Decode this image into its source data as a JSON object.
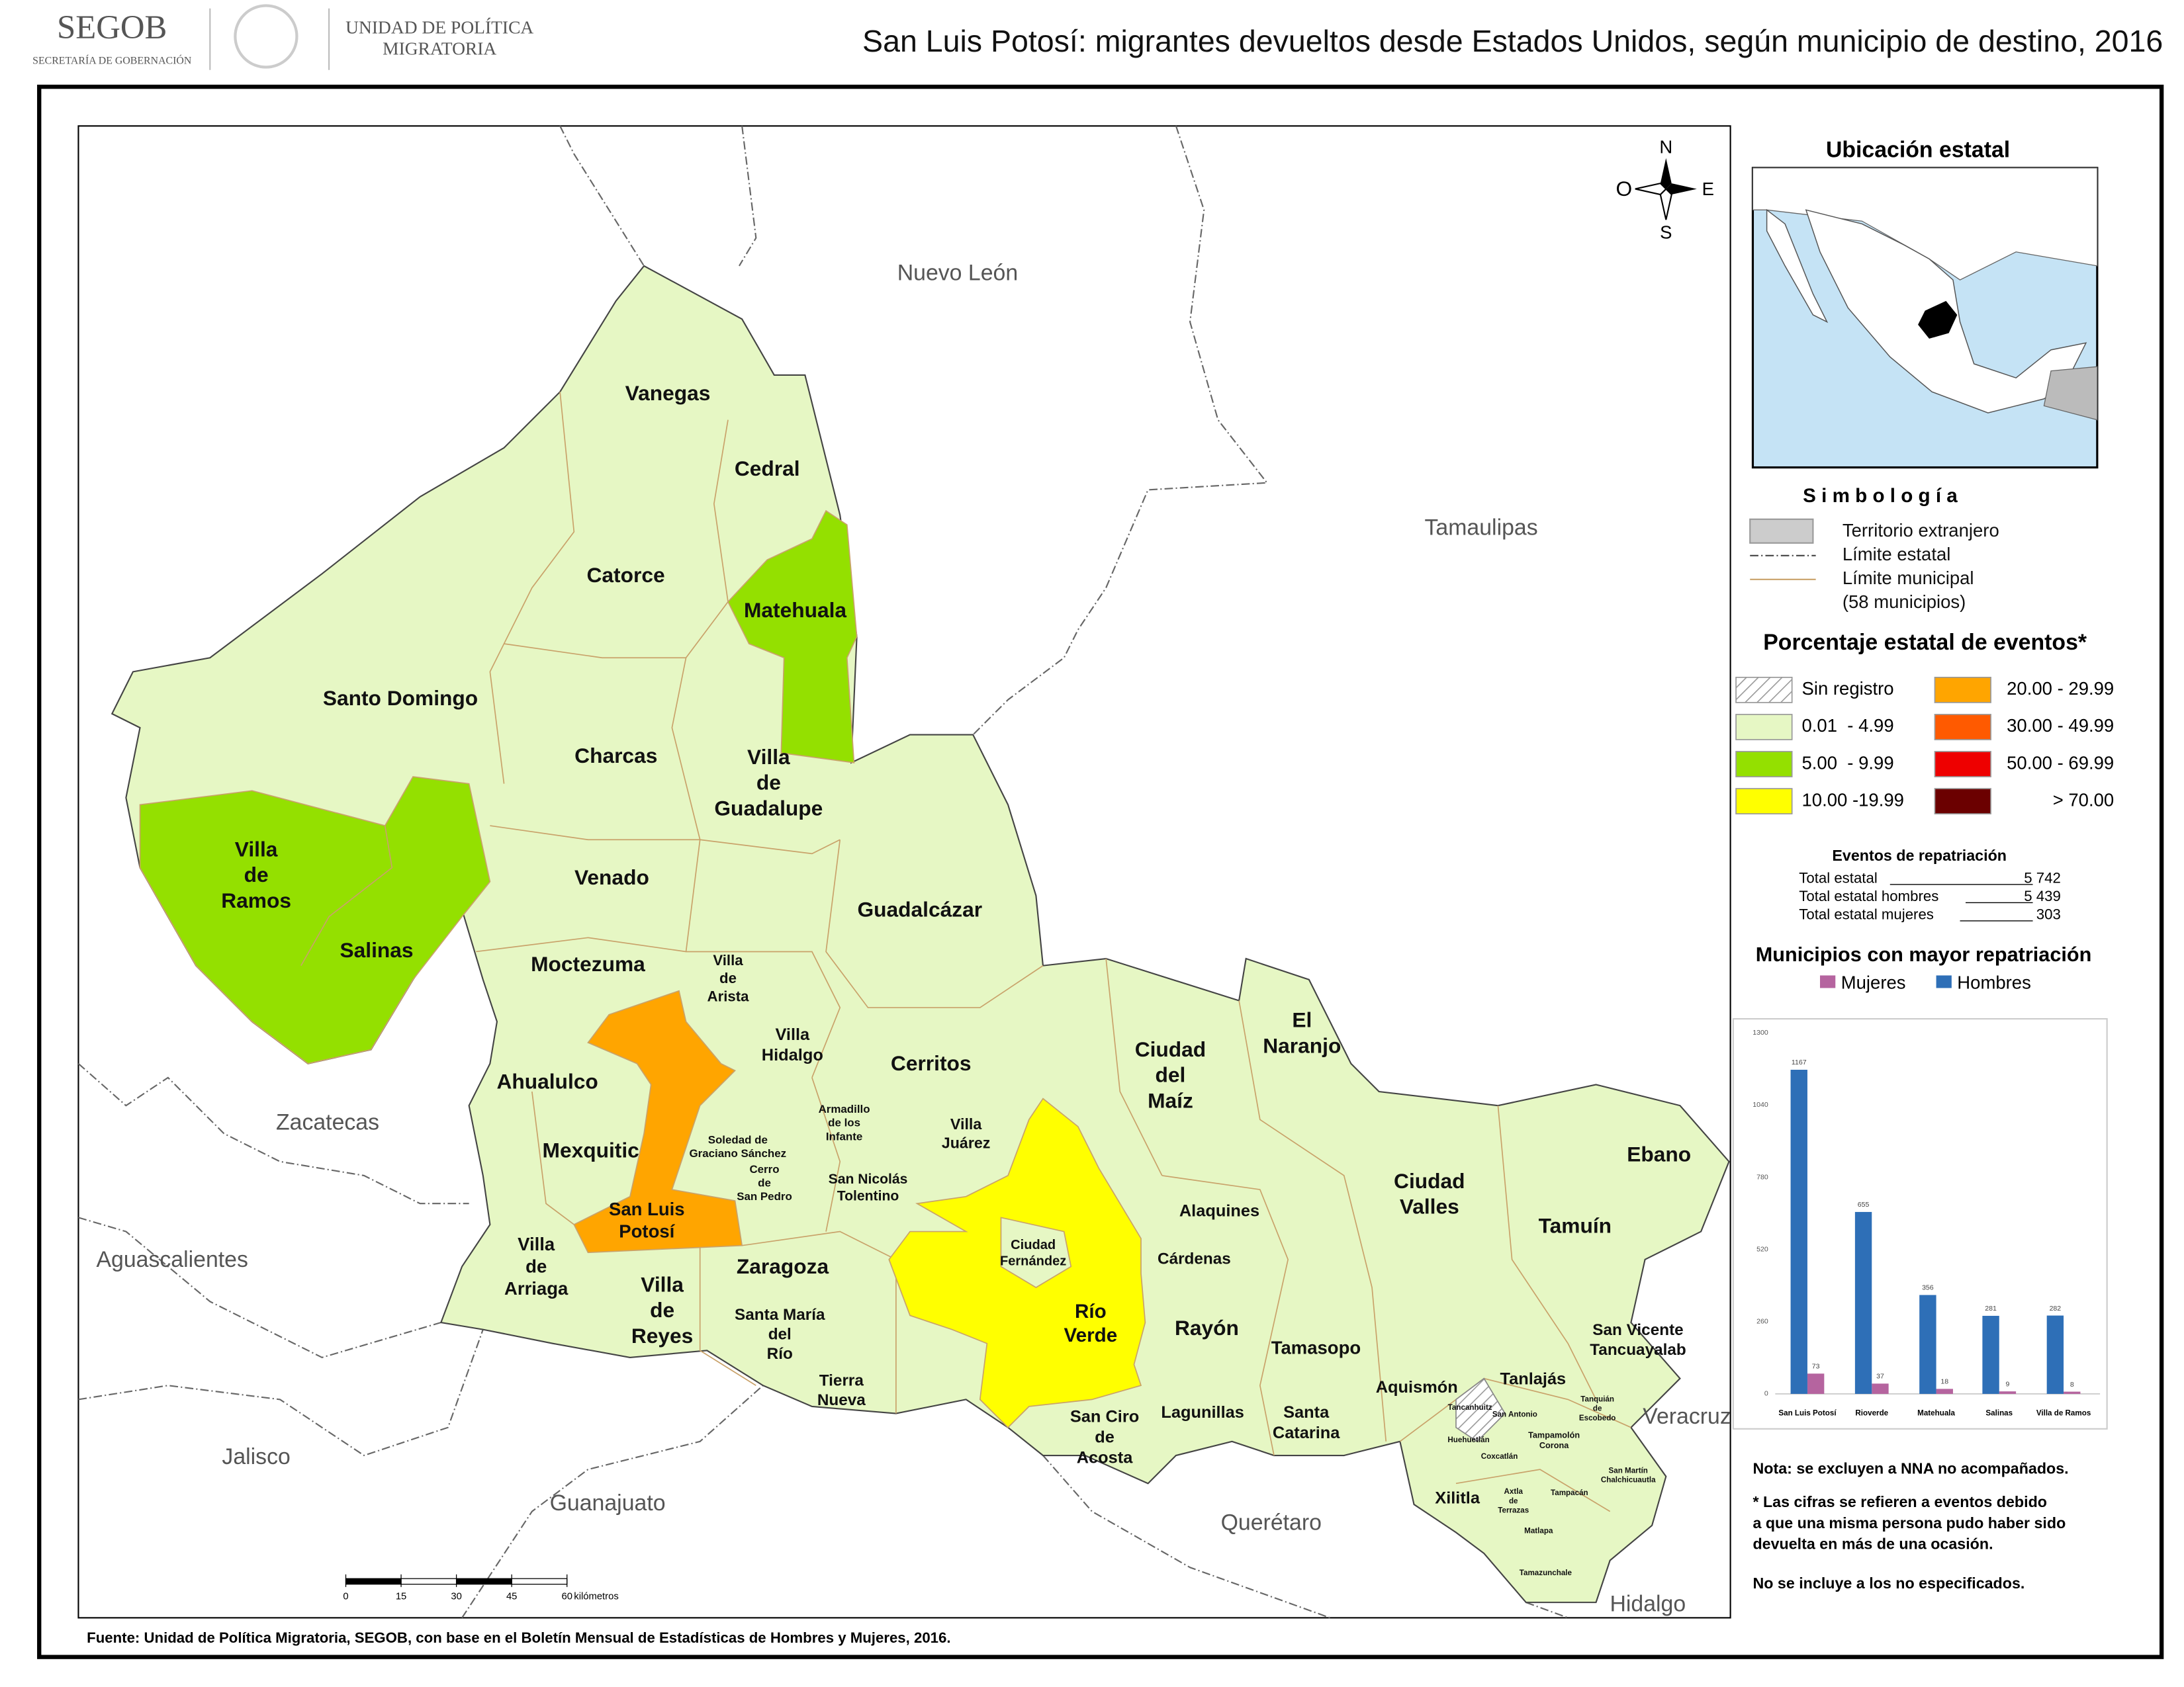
{
  "header": {
    "logo": "SEGOB",
    "logo_sub": "SECRETARÍA DE GOBERNACIÓN",
    "unit": [
      "UNIDAD DE POLÍTICA",
      "MIGRATORIA"
    ],
    "title": "San Luis Potosí: migrantes devueltos desde Estados Unidos, según municipio de destino, 2016"
  },
  "map": {
    "states": [
      "Nuevo León",
      "Tamaulipas",
      "Zacatecas",
      "Aguascalientes",
      "Jalisco",
      "Guanajuato",
      "Querétaro",
      "Veracruz",
      "Hidalgo"
    ],
    "municipalities": [
      [
        "Vanegas"
      ],
      [
        "Cedral"
      ],
      [
        "Catorce"
      ],
      [
        "Matehuala"
      ],
      [
        "Santo Domingo"
      ],
      [
        "Charcas"
      ],
      [
        "Villa",
        "de",
        "Guadalupe"
      ],
      [
        "Villa",
        "de",
        "Ramos"
      ],
      [
        "Venado"
      ],
      [
        "Guadalcázar"
      ],
      [
        "Salinas"
      ],
      [
        "Moctezuma"
      ],
      [
        "Villa",
        "de",
        "Arista"
      ],
      [
        "Villa",
        "Hidalgo"
      ],
      [
        "Cerritos"
      ],
      [
        "Ciudad",
        "del",
        "Maíz"
      ],
      [
        "El",
        "Naranjo"
      ],
      [
        "Ahualulco"
      ],
      [
        "Mexquitic"
      ],
      [
        "Soledad de",
        "Graciano Sánchez"
      ],
      [
        "Cerro",
        "de",
        "San Pedro"
      ],
      [
        "Armadillo",
        "de los",
        "Infante"
      ],
      [
        "Villa",
        "Juárez"
      ],
      [
        "San Nicolás",
        "Tolentino"
      ],
      [
        "Ciudad",
        "Valles"
      ],
      [
        "Ebano"
      ],
      [
        "San Luis",
        "Potosí"
      ],
      [
        "Alaquines"
      ],
      [
        "Tamuín"
      ],
      [
        "Ciudad",
        "Fernández"
      ],
      [
        "Villa",
        "de",
        "Arriaga"
      ],
      [
        "Cárdenas"
      ],
      [
        "Villa",
        "de",
        "Reyes"
      ],
      [
        "Zaragoza"
      ],
      [
        "Santa María",
        "del",
        "Río"
      ],
      [
        "Río",
        "Verde"
      ],
      [
        "Rayón"
      ],
      [
        "San Vicente",
        "Tancuayalab"
      ],
      [
        "Tamasopo"
      ],
      [
        "Tierra",
        "Nueva"
      ],
      [
        "Aquismón"
      ],
      [
        "Tanlajás"
      ],
      [
        "Lagunillas"
      ],
      [
        "Santa",
        "Catarina"
      ],
      [
        "San Ciro",
        "de",
        "Acosta"
      ],
      [
        "Xilitla"
      ],
      [
        "Tancanhuitz"
      ],
      [
        "San Antonio"
      ],
      [
        "Huehuetlán"
      ],
      [
        "Tampamolón",
        "Corona"
      ],
      [
        "Coxcatlán"
      ],
      [
        "Tanquián",
        "de",
        "Escobedo"
      ],
      [
        "San Martín",
        "Chalchicuautla"
      ],
      [
        "Axtla",
        "de",
        "Terrazas"
      ],
      [
        "Tampacán"
      ],
      [
        "Matlapa"
      ],
      [
        "Tamazunchale"
      ]
    ],
    "compass": {
      "n": "N",
      "s": "S",
      "e": "E",
      "o": "O"
    },
    "scale": {
      "ticks": [
        0,
        15,
        30,
        45,
        60
      ],
      "unit": "kilómetros"
    }
  },
  "legend": {
    "location_title": "Ubicación estatal",
    "symbology_title": "S i m b o l o g í a",
    "symbols": [
      "Territorio extranjero",
      "Límite estatal",
      "Límite municipal",
      "(58 municipios)"
    ],
    "classes_title": "Porcentaje estatal de eventos*",
    "classes": [
      {
        "label": "Sin registro",
        "color": "#ffffff"
      },
      {
        "label": "0.01  - 4.99",
        "color": "#e6f7c4"
      },
      {
        "label": "5.00  - 9.99",
        "color": "#94e000"
      },
      {
        "label": "10.00 -19.99",
        "color": "#ffff00"
      },
      {
        "label": "20.00 - 29.99",
        "color": "#ffa500"
      },
      {
        "label": "30.00 - 49.99",
        "color": "#ff5a00"
      },
      {
        "label": "50.00 - 69.99",
        "color": "#ee0000"
      },
      {
        "label": "> 70.00",
        "color": "#6b0000"
      }
    ],
    "totals_title": "Eventos de repatriación",
    "totals": [
      {
        "label": "Total estatal",
        "value": "5 742"
      },
      {
        "label": "Total estatal hombres",
        "value": "5 439"
      },
      {
        "label": "Total estatal mujeres",
        "value": "303"
      }
    ]
  },
  "chart_data": {
    "type": "bar",
    "title": "Municipios con mayor repatriación",
    "categories": [
      "San Luis Potosí",
      "Rioverde",
      "Matehuala",
      "Salinas",
      "Villa de Ramos"
    ],
    "series": [
      {
        "name": "Mujeres",
        "color": "#b5649f",
        "values": [
          73,
          37,
          18,
          9,
          8
        ]
      },
      {
        "name": "Hombres",
        "color": "#2e6fb7",
        "values": [
          1167,
          655,
          356,
          281,
          282
        ]
      }
    ],
    "ylim": [
      0,
      1300
    ],
    "yticks": [
      0,
      260,
      520,
      780,
      1040,
      1300
    ]
  },
  "notes": [
    "Nota: se excluyen a NNA no acompañados.",
    "* Las cifras se refieren a eventos debido",
    "a que una misma persona pudo haber sido",
    "devuelta en más de una ocasión.",
    "No se incluye a los no especificados."
  ],
  "source": "Fuente: Unidad de Política Migratoria, SEGOB, con base en el Boletín Mensual de Estadísticas de Hombres y Mujeres, 2016."
}
